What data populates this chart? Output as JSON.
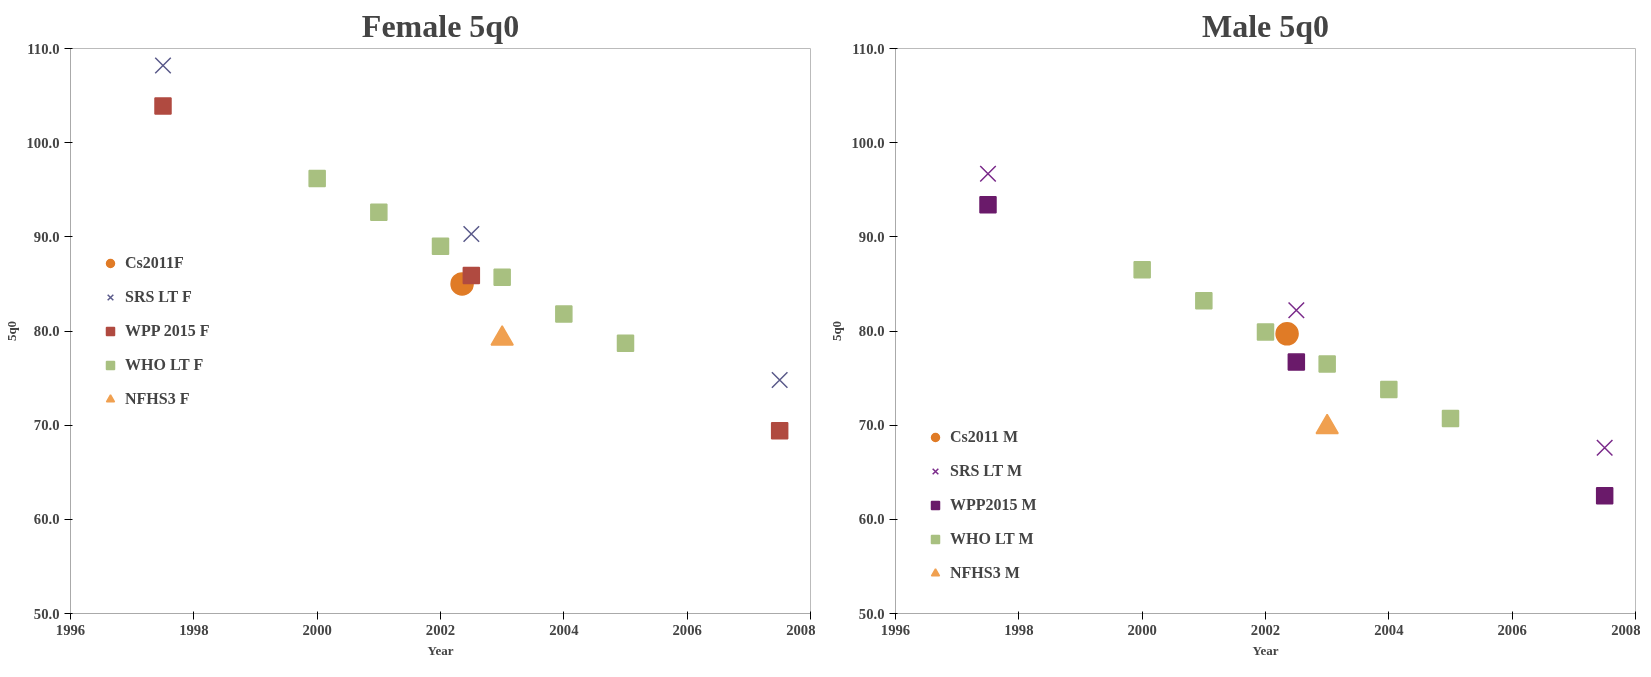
{
  "chart_data": [
    {
      "type": "scatter",
      "title": "Female 5q0",
      "xlabel": "Year",
      "ylabel": "5q0",
      "xlim": [
        1996,
        2008
      ],
      "xticks": [
        1996,
        1998,
        2000,
        2002,
        2004,
        2006,
        2008
      ],
      "ylim": [
        50,
        110
      ],
      "yticks": [
        {
          "value": 50,
          "label": "50.0"
        },
        {
          "value": 60,
          "label": "60.0"
        },
        {
          "value": 70,
          "label": "70.0"
        },
        {
          "value": 80,
          "label": "80.0"
        },
        {
          "value": 90,
          "label": "90.0"
        },
        {
          "value": 100,
          "label": "100.0"
        },
        {
          "value": 110,
          "label": "110.0"
        }
      ],
      "grid": false,
      "legend": "left",
      "series": [
        {
          "name": "Cs2011F",
          "color": "#e07b26",
          "marker": "circle",
          "x": [
            2002.35
          ],
          "values": [
            85.0
          ]
        },
        {
          "name": "SRS LT F",
          "color": "#5a5a8a",
          "marker": "cross",
          "x": [
            1997.5,
            2002.5,
            2007.5
          ],
          "values": [
            108.2,
            90.3,
            74.8
          ]
        },
        {
          "name": "WPP 2015 F",
          "color": "#b04a40",
          "marker": "square",
          "x": [
            1997.5,
            2002.5,
            2007.5
          ],
          "values": [
            103.9,
            85.9,
            69.4
          ]
        },
        {
          "name": "WHO LT F",
          "color": "#a8c080",
          "marker": "square",
          "x": [
            2000,
            2001,
            2002,
            2003,
            2004,
            2005
          ],
          "values": [
            96.2,
            92.6,
            89.0,
            85.7,
            81.8,
            78.7
          ]
        },
        {
          "name": "NFHS3 F",
          "color": "#f0a050",
          "marker": "triangle",
          "x": [
            2003
          ],
          "values": [
            79.2
          ]
        }
      ]
    },
    {
      "type": "scatter",
      "title": "Male 5q0",
      "xlabel": "Year",
      "ylabel": "5q0",
      "xlim": [
        1996,
        2008
      ],
      "xticks": [
        1996,
        1998,
        2000,
        2002,
        2004,
        2006,
        2008
      ],
      "ylim": [
        50,
        110
      ],
      "yticks": [
        {
          "value": 50,
          "label": "50.0"
        },
        {
          "value": 60,
          "label": "60.0"
        },
        {
          "value": 70,
          "label": "70.0"
        },
        {
          "value": 80,
          "label": "80.0"
        },
        {
          "value": 90,
          "label": "90.0"
        },
        {
          "value": 100,
          "label": "100.0"
        },
        {
          "value": 110,
          "label": "110.0"
        }
      ],
      "grid": false,
      "legend": "bottom left",
      "series": [
        {
          "name": "Cs2011 M",
          "color": "#e07b26",
          "marker": "circle",
          "x": [
            2002.35
          ],
          "values": [
            79.7
          ]
        },
        {
          "name": "SRS LT M",
          "color": "#7a2a8a",
          "marker": "cross",
          "x": [
            1997.5,
            2002.5,
            2007.5
          ],
          "values": [
            96.7,
            82.2,
            67.6
          ]
        },
        {
          "name": "WPP2015 M",
          "color": "#6a1a6a",
          "marker": "square",
          "x": [
            1997.5,
            2002.5,
            2007.5
          ],
          "values": [
            93.4,
            76.7,
            62.5
          ]
        },
        {
          "name": "WHO LT M",
          "color": "#a8c080",
          "marker": "square",
          "x": [
            2000,
            2001,
            2002,
            2003,
            2004,
            2005
          ],
          "values": [
            86.5,
            83.2,
            79.9,
            76.5,
            73.8,
            70.7
          ]
        },
        {
          "name": "NFHS3 M",
          "color": "#f0a050",
          "marker": "triangle",
          "x": [
            2003
          ],
          "values": [
            69.8
          ]
        }
      ]
    }
  ]
}
